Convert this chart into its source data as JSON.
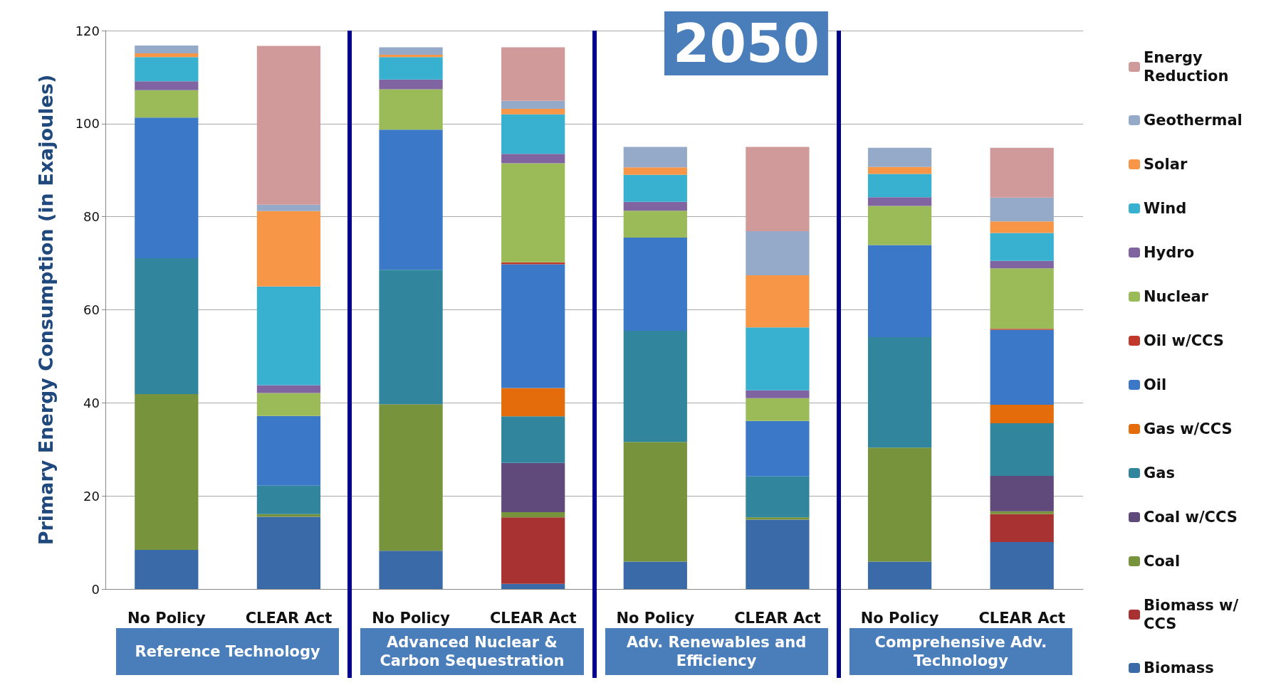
{
  "chart_data": {
    "type": "bar",
    "title": "2050",
    "ylabel": "Primary Energy Consumption (in Exajoules)",
    "categories": [
      "No Policy",
      "CLEAR Act",
      "No Policy",
      "CLEAR Act",
      "No Policy",
      "CLEAR Act",
      "No Policy",
      "CLEAR Act"
    ],
    "annotations": [
      "Reference Technology",
      "Advanced Nuclear & Carbon Sequestration",
      "Adv. Renewables and Efficiency",
      "Comprehensive Adv. Technology"
    ],
    "stacked": true,
    "ylim": [
      0,
      120
    ],
    "yticks": [
      0,
      20,
      40,
      60,
      80,
      100,
      120
    ],
    "grid": "y",
    "legend": "right",
    "series": [
      {
        "name": "Biomass",
        "color": "#3a6aa8",
        "values": [
          8.4,
          15.5,
          8.2,
          1.1,
          5.9,
          14.9,
          5.9,
          10.1
        ]
      },
      {
        "name": "Biomass w/CCS",
        "color": "#a83232",
        "values": [
          0,
          0,
          0,
          14.3,
          0,
          0,
          0,
          6
        ]
      },
      {
        "name": "Coal",
        "color": "#77933c",
        "values": [
          33.5,
          0.6,
          31.5,
          1.1,
          25.7,
          0.5,
          24.5,
          0.6
        ]
      },
      {
        "name": "Coal w/CCS",
        "color": "#604a7b",
        "values": [
          0,
          0,
          0,
          10.6,
          0,
          0,
          0,
          7.6
        ]
      },
      {
        "name": "Gas",
        "color": "#31859c",
        "values": [
          29.2,
          6.1,
          28.9,
          10,
          23.9,
          8.8,
          23.7,
          11.3
        ]
      },
      {
        "name": "Gas w/CCS",
        "color": "#e46c0a",
        "values": [
          0,
          0,
          0,
          6.1,
          0,
          0,
          0,
          4
        ]
      },
      {
        "name": "Oil",
        "color": "#3b78c8",
        "values": [
          30.2,
          15,
          30.1,
          26.6,
          20,
          11.9,
          19.8,
          16.1
        ]
      },
      {
        "name": "Oil w/CCS",
        "color": "#c0392b",
        "values": [
          0,
          0,
          0,
          0.4,
          0,
          0,
          0,
          0.2
        ]
      },
      {
        "name": "Nuclear",
        "color": "#9bbb59",
        "values": [
          5.9,
          4.9,
          8.7,
          21.3,
          5.8,
          4.9,
          8.4,
          13
        ]
      },
      {
        "name": "Hydro",
        "color": "#8064a2",
        "values": [
          1.9,
          1.7,
          2.1,
          2,
          1.9,
          1.7,
          1.9,
          1.6
        ]
      },
      {
        "name": "Wind",
        "color": "#38b0d0",
        "values": [
          5.2,
          21.2,
          4.8,
          8.5,
          5.8,
          13.5,
          5,
          6
        ]
      },
      {
        "name": "Solar",
        "color": "#f79646",
        "values": [
          0.8,
          16.2,
          0.5,
          1.2,
          1.6,
          11.2,
          1.5,
          2.5
        ]
      },
      {
        "name": "Geothermal",
        "color": "#95a9c9",
        "values": [
          1.7,
          1.4,
          1.6,
          1.7,
          4.4,
          9.5,
          4.1,
          5.1
        ]
      },
      {
        "name": "Energy Reduction",
        "color": "#d09a9a",
        "values": [
          0,
          34.1,
          0,
          11.5,
          0,
          18.1,
          0,
          10.7
        ]
      }
    ]
  }
}
